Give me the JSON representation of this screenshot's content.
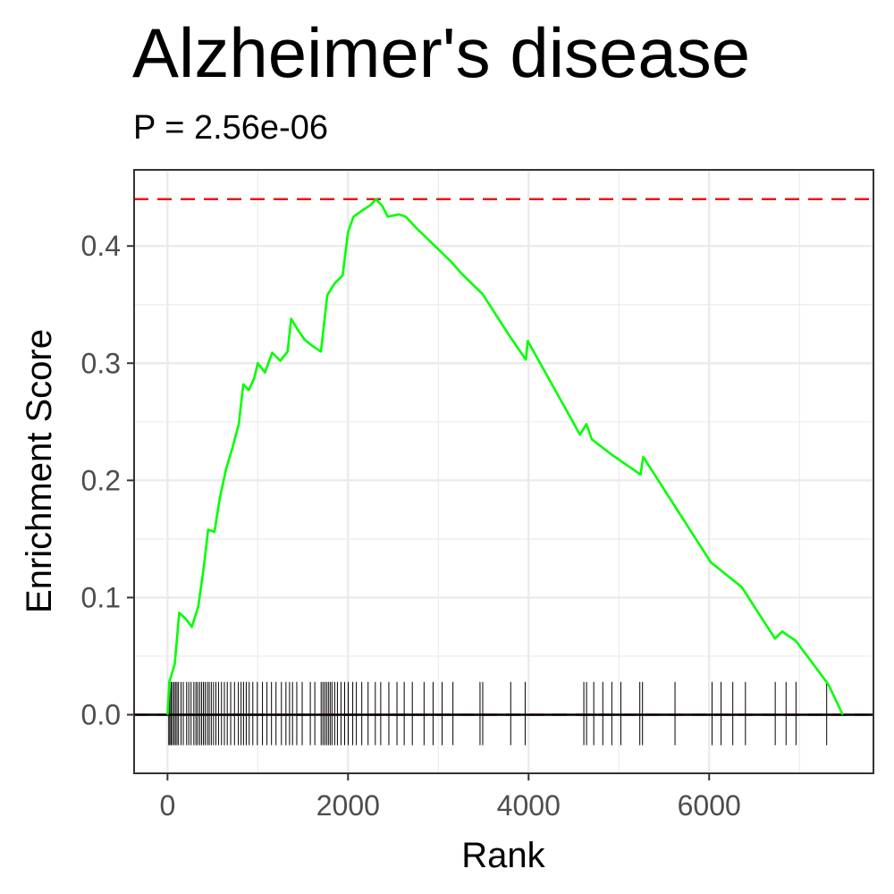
{
  "chart_data": {
    "type": "line",
    "title": "Alzheimer's disease",
    "subtitle": "P = 2.56e-06",
    "xlabel": "Rank",
    "ylabel": "Enrichment Score",
    "xlim": [
      -370,
      7820
    ],
    "ylim": [
      -0.05,
      0.465
    ],
    "x_ticks": [
      0,
      2000,
      4000,
      6000
    ],
    "x_tick_labels": [
      "0",
      "2000",
      "4000",
      "6000"
    ],
    "y_ticks": [
      0.0,
      0.1,
      0.2,
      0.3,
      0.4
    ],
    "y_tick_labels": [
      "0.0",
      "0.1",
      "0.2",
      "0.3",
      "0.4"
    ],
    "grid": true,
    "colors": {
      "curve": "#00ff00",
      "reference": "#e41a1c",
      "zero_line": "#000000",
      "hits": "#000000",
      "panel_border": "#333333",
      "grid": "#ebebeb"
    },
    "max_es": 0.44,
    "series": [
      {
        "values": [
          [
            0,
            0.0
          ],
          [
            20,
            0.028
          ],
          [
            80,
            0.043
          ],
          [
            130,
            0.087
          ],
          [
            200,
            0.082
          ],
          [
            270,
            0.075
          ],
          [
            340,
            0.092
          ],
          [
            400,
            0.125
          ],
          [
            450,
            0.158
          ],
          [
            520,
            0.156
          ],
          [
            580,
            0.185
          ],
          [
            650,
            0.21
          ],
          [
            720,
            0.228
          ],
          [
            790,
            0.248
          ],
          [
            840,
            0.282
          ],
          [
            900,
            0.277
          ],
          [
            960,
            0.287
          ],
          [
            1000,
            0.3
          ],
          [
            1080,
            0.292
          ],
          [
            1160,
            0.309
          ],
          [
            1250,
            0.302
          ],
          [
            1330,
            0.31
          ],
          [
            1370,
            0.338
          ],
          [
            1430,
            0.33
          ],
          [
            1520,
            0.32
          ],
          [
            1600,
            0.315
          ],
          [
            1700,
            0.31
          ],
          [
            1770,
            0.358
          ],
          [
            1850,
            0.368
          ],
          [
            1940,
            0.375
          ],
          [
            2000,
            0.412
          ],
          [
            2060,
            0.425
          ],
          [
            2150,
            0.43
          ],
          [
            2250,
            0.435
          ],
          [
            2310,
            0.44
          ],
          [
            2380,
            0.434
          ],
          [
            2440,
            0.425
          ],
          [
            2560,
            0.427
          ],
          [
            2640,
            0.425
          ],
          [
            2760,
            0.415
          ],
          [
            2950,
            0.401
          ],
          [
            3150,
            0.386
          ],
          [
            3250,
            0.377
          ],
          [
            3490,
            0.359
          ],
          [
            3800,
            0.322
          ],
          [
            3970,
            0.303
          ],
          [
            3990,
            0.319
          ],
          [
            4570,
            0.239
          ],
          [
            4640,
            0.248
          ],
          [
            4700,
            0.235
          ],
          [
            4920,
            0.222
          ],
          [
            5240,
            0.205
          ],
          [
            5270,
            0.22
          ],
          [
            6020,
            0.13
          ],
          [
            6150,
            0.122
          ],
          [
            6360,
            0.109
          ],
          [
            6730,
            0.065
          ],
          [
            6810,
            0.071
          ],
          [
            6960,
            0.063
          ],
          [
            7320,
            0.026
          ],
          [
            7480,
            0.0
          ]
        ]
      }
    ],
    "hits": [
      14,
      26,
      40,
      55,
      72,
      88,
      105,
      122,
      150,
      175,
      212,
      236,
      261,
      292,
      315,
      334,
      356,
      377,
      398,
      418,
      442,
      462,
      485,
      510,
      536,
      565,
      598,
      630,
      662,
      700,
      742,
      785,
      815,
      842,
      872,
      905,
      945,
      995,
      1052,
      1102,
      1152,
      1202,
      1262,
      1312,
      1352,
      1385,
      1432,
      1492,
      1582,
      1632,
      1702,
      1722,
      1742,
      1762,
      1782,
      1802,
      1822,
      1852,
      1882,
      1922,
      1962,
      2002,
      2052,
      2092,
      2152,
      2222,
      2302,
      2362,
      2452,
      2542,
      2622,
      2712,
      2842,
      2942,
      3042,
      3162,
      3462,
      3492,
      3802,
      3962,
      4612,
      4642,
      4722,
      4822,
      4922,
      5022,
      5232,
      5262,
      5622,
      6032,
      6132,
      6262,
      6402,
      6732,
      6852,
      6962,
      7302
    ]
  }
}
